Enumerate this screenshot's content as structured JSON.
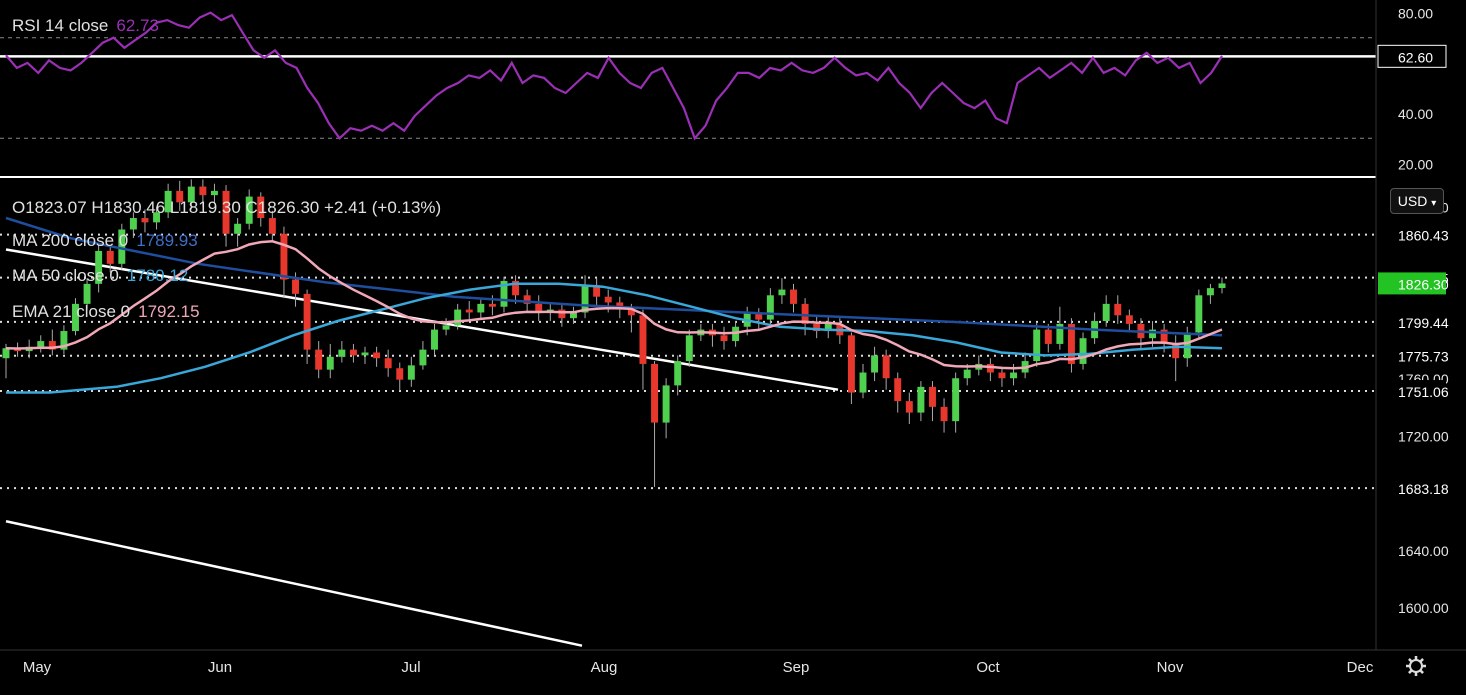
{
  "colors": {
    "background": "#000000",
    "up_candle": "#4fd04f",
    "down_candle": "#e8372c",
    "rsi_line": "#9b2fb5",
    "ma200": "#1f4e9e",
    "ma50": "#3aa7d9",
    "ema21": "#f0a8b8",
    "trendline": "#ffffff",
    "current_price_bg": "#22c322",
    "axis_text": "#e6e6e6"
  },
  "rsi_panel": {
    "legend_label": "RSI 14 close",
    "legend_value": "62.73",
    "axis_ticks": [
      "80.00",
      "40.00",
      "20.00"
    ],
    "level_label": "62.60"
  },
  "price_panel": {
    "ohlc": {
      "open": "O1823.07",
      "high": "H1830.46",
      "low": "L1819.30",
      "close": "C1826.30",
      "change": "+2.41 (+0.13%)"
    },
    "indicators": [
      {
        "label": "MA 200 close 0",
        "value": "1789.93"
      },
      {
        "label": "MA 50 close 0",
        "value": "1780.12"
      },
      {
        "label": "EMA 21 close 0",
        "value": "1792.15"
      }
    ],
    "currency_button": "USD",
    "currency_icon": "chevron-down-icon",
    "axis_ticks": [
      "1880.00",
      "1760.00",
      "1720.00",
      "1640.00",
      "1600.00"
    ],
    "level_labels": [
      "1860.43",
      "1830.35",
      "1799.44",
      "1775.73",
      "1751.06",
      "1683.18"
    ],
    "current_price": "1826.30"
  },
  "time_axis": {
    "months": [
      "May",
      "Jun",
      "Jul",
      "Aug",
      "Sep",
      "Oct",
      "Nov",
      "Dec"
    ],
    "settings_icon": "gear-icon"
  },
  "chart_data": {
    "type": "candlestick",
    "instrument_currency": "USD",
    "price": {
      "ylim": [
        1570,
        1900
      ],
      "horizontal_levels": [
        1860.43,
        1830.35,
        1799.44,
        1775.73,
        1751.06,
        1683.18
      ],
      "last": {
        "open": 1823.07,
        "high": 1830.46,
        "low": 1819.3,
        "close": 1826.3
      },
      "ma200": [
        [
          0,
          1872
        ],
        [
          40,
          1858
        ],
        [
          120,
          1840
        ],
        [
          200,
          1827
        ],
        [
          280,
          1817
        ],
        [
          360,
          1811
        ],
        [
          440,
          1807
        ],
        [
          520,
          1803
        ],
        [
          600,
          1799
        ],
        [
          680,
          1794
        ],
        [
          760,
          1790
        ]
      ],
      "ma50": [
        [
          0,
          1750
        ],
        [
          10,
          1750
        ],
        [
          25,
          1754
        ],
        [
          35,
          1760
        ],
        [
          45,
          1768
        ],
        [
          55,
          1778
        ],
        [
          65,
          1790
        ],
        [
          75,
          1800
        ],
        [
          85,
          1808
        ],
        [
          95,
          1816
        ],
        [
          105,
          1822
        ],
        [
          115,
          1826
        ],
        [
          125,
          1826
        ],
        [
          135,
          1824
        ],
        [
          145,
          1818
        ],
        [
          155,
          1810
        ],
        [
          165,
          1802
        ],
        [
          175,
          1796
        ],
        [
          185,
          1794
        ],
        [
          195,
          1793
        ],
        [
          205,
          1790
        ],
        [
          215,
          1785
        ],
        [
          225,
          1778
        ],
        [
          235,
          1776
        ],
        [
          245,
          1777
        ],
        [
          255,
          1780
        ],
        [
          265,
          1782
        ],
        [
          275,
          1781
        ]
      ],
      "candles": [
        [
          1774,
          1781,
          1760,
          1784
        ],
        [
          1781,
          1779,
          1775,
          1785
        ],
        [
          1779,
          1782,
          1774,
          1787
        ],
        [
          1782,
          1786,
          1778,
          1790
        ],
        [
          1786,
          1780,
          1776,
          1794
        ],
        [
          1780,
          1793,
          1777,
          1797
        ],
        [
          1793,
          1812,
          1790,
          1816
        ],
        [
          1812,
          1826,
          1808,
          1830
        ],
        [
          1826,
          1849,
          1820,
          1853
        ],
        [
          1849,
          1840,
          1834,
          1853
        ],
        [
          1840,
          1864,
          1836,
          1868
        ],
        [
          1864,
          1872,
          1858,
          1876
        ],
        [
          1872,
          1869,
          1862,
          1878
        ],
        [
          1869,
          1876,
          1864,
          1880
        ],
        [
          1876,
          1891,
          1872,
          1896
        ],
        [
          1891,
          1883,
          1877,
          1898
        ],
        [
          1883,
          1894,
          1878,
          1899
        ],
        [
          1894,
          1888,
          1880,
          1899
        ],
        [
          1888,
          1891,
          1882,
          1896
        ],
        [
          1891,
          1861,
          1852,
          1895
        ],
        [
          1861,
          1868,
          1852,
          1872
        ],
        [
          1868,
          1887,
          1864,
          1892
        ],
        [
          1887,
          1872,
          1866,
          1890
        ],
        [
          1872,
          1861,
          1855,
          1877
        ],
        [
          1861,
          1829,
          1816,
          1866
        ],
        [
          1829,
          1819,
          1810,
          1834
        ],
        [
          1819,
          1780,
          1770,
          1822
        ],
        [
          1780,
          1766,
          1760,
          1786
        ],
        [
          1766,
          1775,
          1760,
          1784
        ],
        [
          1775,
          1780,
          1771,
          1786
        ],
        [
          1780,
          1776,
          1771,
          1784
        ],
        [
          1776,
          1778,
          1770,
          1782
        ],
        [
          1778,
          1774,
          1768,
          1782
        ],
        [
          1774,
          1767,
          1761,
          1780
        ],
        [
          1767,
          1759,
          1751,
          1771
        ],
        [
          1759,
          1769,
          1754,
          1775
        ],
        [
          1769,
          1780,
          1766,
          1786
        ],
        [
          1780,
          1794,
          1776,
          1798
        ],
        [
          1794,
          1797,
          1790,
          1802
        ],
        [
          1797,
          1808,
          1794,
          1812
        ],
        [
          1808,
          1806,
          1800,
          1814
        ],
        [
          1806,
          1812,
          1802,
          1816
        ],
        [
          1812,
          1810,
          1804,
          1818
        ],
        [
          1810,
          1828,
          1806,
          1831
        ],
        [
          1828,
          1818,
          1812,
          1832
        ],
        [
          1818,
          1812,
          1806,
          1822
        ],
        [
          1812,
          1806,
          1800,
          1818
        ],
        [
          1806,
          1808,
          1800,
          1812
        ],
        [
          1808,
          1802,
          1796,
          1812
        ],
        [
          1802,
          1806,
          1798,
          1810
        ],
        [
          1806,
          1825,
          1802,
          1832
        ],
        [
          1825,
          1817,
          1810,
          1830
        ],
        [
          1817,
          1813,
          1806,
          1822
        ],
        [
          1813,
          1808,
          1802,
          1817
        ],
        [
          1808,
          1804,
          1792,
          1812
        ],
        [
          1804,
          1770,
          1752,
          1808
        ],
        [
          1770,
          1729,
          1684,
          1772
        ],
        [
          1729,
          1755,
          1718,
          1760
        ],
        [
          1755,
          1772,
          1748,
          1776
        ],
        [
          1772,
          1790,
          1768,
          1794
        ],
        [
          1790,
          1794,
          1786,
          1798
        ],
        [
          1794,
          1790,
          1782,
          1798
        ],
        [
          1790,
          1786,
          1780,
          1796
        ],
        [
          1786,
          1796,
          1782,
          1800
        ],
        [
          1796,
          1806,
          1790,
          1810
        ],
        [
          1806,
          1801,
          1794,
          1809
        ],
        [
          1801,
          1818,
          1796,
          1823
        ],
        [
          1818,
          1822,
          1812,
          1830
        ],
        [
          1822,
          1812,
          1806,
          1826
        ],
        [
          1812,
          1798,
          1790,
          1816
        ],
        [
          1798,
          1793,
          1788,
          1803
        ],
        [
          1793,
          1798,
          1788,
          1804
        ],
        [
          1798,
          1790,
          1784,
          1802
        ],
        [
          1790,
          1750,
          1742,
          1792
        ],
        [
          1750,
          1764,
          1746,
          1770
        ],
        [
          1764,
          1776,
          1758,
          1782
        ],
        [
          1776,
          1760,
          1752,
          1780
        ],
        [
          1760,
          1744,
          1736,
          1764
        ],
        [
          1744,
          1736,
          1728,
          1750
        ],
        [
          1736,
          1754,
          1730,
          1758
        ],
        [
          1754,
          1740,
          1730,
          1758
        ],
        [
          1740,
          1730,
          1722,
          1746
        ],
        [
          1730,
          1760,
          1722,
          1764
        ],
        [
          1760,
          1766,
          1755,
          1770
        ],
        [
          1766,
          1770,
          1762,
          1776
        ],
        [
          1770,
          1764,
          1758,
          1774
        ],
        [
          1764,
          1760,
          1754,
          1768
        ],
        [
          1760,
          1764,
          1755,
          1770
        ],
        [
          1764,
          1772,
          1760,
          1778
        ],
        [
          1772,
          1794,
          1768,
          1799
        ],
        [
          1794,
          1784,
          1778,
          1798
        ],
        [
          1784,
          1798,
          1780,
          1810
        ],
        [
          1798,
          1770,
          1764,
          1802
        ],
        [
          1770,
          1788,
          1766,
          1792
        ],
        [
          1788,
          1800,
          1784,
          1806
        ],
        [
          1800,
          1812,
          1796,
          1818
        ],
        [
          1812,
          1804,
          1798,
          1818
        ],
        [
          1804,
          1798,
          1792,
          1808
        ],
        [
          1798,
          1788,
          1780,
          1802
        ],
        [
          1788,
          1794,
          1782,
          1800
        ],
        [
          1794,
          1784,
          1778,
          1798
        ],
        [
          1784,
          1774,
          1758,
          1790
        ],
        [
          1774,
          1792,
          1768,
          1796
        ],
        [
          1792,
          1818,
          1788,
          1822
        ],
        [
          1818,
          1823,
          1812,
          1826
        ],
        [
          1823.07,
          1826.3,
          1819.3,
          1830.46
        ]
      ]
    },
    "rsi": {
      "period": 14,
      "ylim": [
        15,
        85
      ],
      "overbought": 70,
      "oversold": 30,
      "level": 62.6,
      "values": [
        63,
        58,
        60,
        56,
        61,
        58,
        57,
        60,
        64,
        68,
        70,
        66,
        69,
        72,
        76,
        77,
        75,
        74,
        78,
        80,
        77,
        79,
        72,
        65,
        62,
        65,
        60,
        58,
        50,
        44,
        36,
        30,
        34,
        33,
        35,
        33,
        36,
        33,
        39,
        43,
        47,
        50,
        52,
        55,
        54,
        57,
        53,
        60,
        52,
        55,
        54,
        50,
        48,
        52,
        56,
        54,
        62,
        56,
        52,
        50,
        56,
        58,
        50,
        42,
        30,
        35,
        45,
        50,
        56,
        56,
        54,
        58,
        57,
        60,
        57,
        56,
        58,
        62,
        58,
        55,
        56,
        53,
        58,
        52,
        48,
        42,
        48,
        52,
        48,
        44,
        42,
        45,
        38,
        36,
        52,
        55,
        58,
        54,
        57,
        60,
        56,
        62,
        56,
        58,
        55,
        61,
        64,
        60,
        62,
        58,
        60,
        52,
        56,
        62.73
      ]
    },
    "trendlines": [
      {
        "from": [
          0,
          1850
        ],
        "to": [
          520,
          1752
        ]
      },
      {
        "from": [
          0,
          1660
        ],
        "to": [
          360,
          1573
        ]
      }
    ],
    "x_axis_labels": [
      "May",
      "Jun",
      "Jul",
      "Aug",
      "Sep",
      "Oct",
      "Nov",
      "Dec"
    ]
  }
}
